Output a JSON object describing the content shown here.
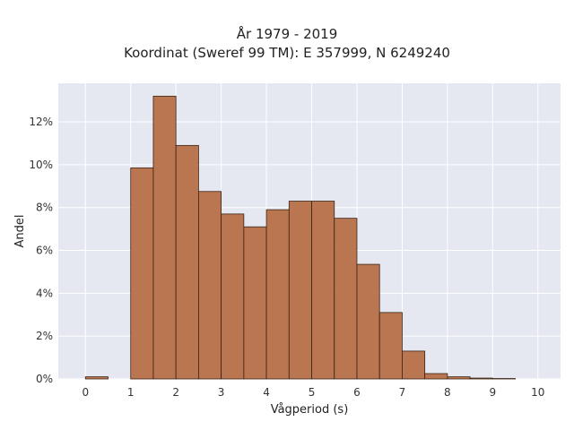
{
  "chart_data": {
    "type": "bar",
    "title": [
      "År 1979 - 2019",
      "Koordinat (Sweref 99 TM): E 357999, N 6249240"
    ],
    "xlabel": "Vågperiod (s)",
    "ylabel": "Andel",
    "bin_edges": [
      0,
      0.5,
      1,
      1.5,
      2,
      2.5,
      3,
      3.5,
      4,
      4.5,
      5,
      5.5,
      6,
      6.5,
      7,
      7.5,
      8,
      8.5,
      9,
      9.5,
      10
    ],
    "values": [
      0.1,
      0,
      9.85,
      13.2,
      10.9,
      8.75,
      7.7,
      7.1,
      7.9,
      8.3,
      8.3,
      7.5,
      5.35,
      3.1,
      1.3,
      0.25,
      0.1,
      0.04,
      0.02,
      0
    ],
    "xlim": [
      -0.6,
      10.5
    ],
    "ylim": [
      0,
      13.8
    ],
    "xticks": [
      0,
      1,
      2,
      3,
      4,
      5,
      6,
      7,
      8,
      9,
      10
    ],
    "xtick_labels": [
      "0",
      "1",
      "2",
      "3",
      "4",
      "5",
      "6",
      "7",
      "8",
      "9",
      "10"
    ],
    "yticks": [
      0,
      2,
      4,
      6,
      8,
      10,
      12
    ],
    "ytick_labels": [
      "0%",
      "2%",
      "4%",
      "6%",
      "8%",
      "10%",
      "12%"
    ],
    "grid": true,
    "bar_color": "#b5683f",
    "bar_edge_color": "#3b2414",
    "plot_bg": "#e5e8f1",
    "grid_color": "#ffffff"
  }
}
